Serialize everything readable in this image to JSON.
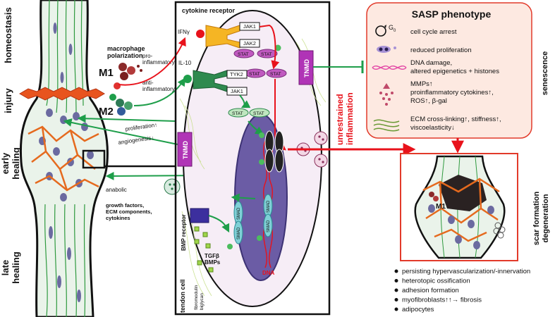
{
  "left_panel": {
    "stages": [
      "homeostasis",
      "injury",
      "early\nhealing",
      "late\nhealing"
    ],
    "macrophage_polarization": "macrophage\npolarization",
    "m1": "M1",
    "m2": "M2",
    "pro_inflammatory": "pro-\ninflammatory",
    "anti_inflammatory": "anti-\ninflammatory",
    "proliferation": "proliferation↑",
    "angiogenesis": "angiogenesis↓",
    "anabolic": "anabolic",
    "anabolic_items": "growth factors,\nECM components,\ncytokines"
  },
  "cell": {
    "label": "tendon cell",
    "cytokine_receptor": "cytokine receptor",
    "ifn": "IFNγ",
    "il10": "IL-10",
    "jak1": "JAK1",
    "jak2": "JAK2",
    "tyk2": "TYK2",
    "stat": "STAT",
    "p": "P",
    "smad": "SMAD",
    "tnmd": "TNMD",
    "dna": "DNA",
    "bmp_receptor": "BMP receptor",
    "tgfb_bmps": "TGFβ\nBMPs",
    "fibromodulin_biglycan": "fibromodulin\nbiglycan"
  },
  "sasp": {
    "title": "SASP phenotype",
    "g0": "G",
    "g0_sub": "0",
    "items": [
      "cell cycle arrest",
      "reduced proliferation",
      "DNA damage,\naltered epigenetics + histones",
      "MMPs↑\nproinflammatory cytokines↑,\nROS↑, β-gal",
      "ECM cross-linking↑, stiffness↑,\nviscoelasticity↓"
    ],
    "side_label": "senescence"
  },
  "unrestrained": "unrestrained\ninflammation",
  "scar": {
    "side_label": "scar formation\ndegeneration",
    "m1": "M1"
  },
  "outcomes": [
    "persisting hypervascularization/-innervation",
    "heterotopic ossification",
    "adhesion formation",
    "myofibroblasts↑↑→ fibrosis",
    "adipocytes"
  ],
  "colors": {
    "red_arrow": "#e8121b",
    "green_arrow": "#1e9e4a",
    "tnmd": "#b034b6",
    "sasp_fill": "#fde9e1",
    "sasp_border": "#e23a2a",
    "cell_fill": "#f6edf6",
    "nucleus": "#6b5ca5"
  }
}
